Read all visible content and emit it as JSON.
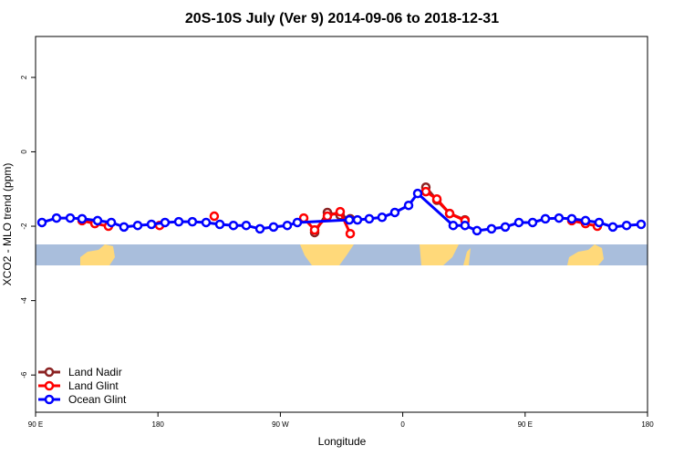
{
  "chart_data": {
    "type": "line",
    "title": "20S-10S July (Ver 9)   2014-09-06 to 2018-12-31",
    "x_label": "Longitude",
    "y_label": "XCO2 - MLO trend (ppm)",
    "xlim": [
      90,
      540
    ],
    "xticks": [
      {
        "value": 90,
        "label": "90 E"
      },
      180,
      {
        "value": 270,
        "label": "90 W"
      },
      {
        "value": 360,
        "label": "0"
      },
      {
        "value": 450,
        "label": "90 E"
      },
      {
        "value": 540,
        "label": "180"
      }
    ],
    "ylim": [
      -7,
      3.1
    ],
    "yticks": [
      2,
      0,
      -2,
      -4,
      -6
    ],
    "legend": "bottom-left",
    "series": [
      {
        "name": "Land Nadir",
        "color": "#8b2323",
        "x": [
          295.2,
          304.6,
          314.0,
          321.4,
          null,
          377.0,
          385.1,
          394.5,
          405.8
        ],
        "values": [
          -2.17,
          -1.63,
          -1.71,
          -1.8,
          null,
          -0.95,
          -1.3,
          -1.66,
          -1.83
        ]
      },
      {
        "name": "Land Glint",
        "color": "#ff0000",
        "x": [
          124.2,
          133.6,
          143.6,
          null,
          181.2,
          null,
          221.4,
          null,
          287.2,
          295.2,
          304.6,
          314.0,
          321.4,
          null,
          377.0,
          385.1,
          394.5,
          405.8,
          null,
          484.3,
          494.4,
          503.1
        ],
        "values": [
          -1.85,
          -1.93,
          -2.0,
          null,
          -1.98,
          null,
          -1.73,
          null,
          -1.78,
          -2.1,
          -1.73,
          -1.61,
          -2.2,
          null,
          -1.07,
          -1.27,
          -1.66,
          -1.85,
          null,
          -1.85,
          -1.93,
          -2.0
        ]
      },
      {
        "name": "Ocean Glint",
        "color": "#0000ff",
        "x": [
          94.7,
          105.4,
          115.5,
          124.2,
          135.6,
          145.7,
          155.0,
          165.1,
          175.2,
          185.2,
          195.3,
          205.3,
          215.4,
          225.5,
          235.5,
          244.9,
          255.0,
          265.0,
          275.1,
          282.5,
          320.7,
          326.7,
          335.4,
          344.8,
          354.2,
          364.3,
          371.0,
          397.1,
          405.8,
          414.6,
          425.3,
          435.4,
          445.4,
          455.5,
          464.9,
          474.9,
          484.3,
          494.4,
          504.4,
          514.5,
          524.6,
          535.3
        ],
        "values": [
          -1.9,
          -1.78,
          -1.78,
          -1.8,
          -1.85,
          -1.9,
          -2.02,
          -1.98,
          -1.95,
          -1.9,
          -1.88,
          -1.88,
          -1.9,
          -1.95,
          -1.98,
          -1.98,
          -2.07,
          -2.02,
          -1.98,
          -1.9,
          -1.83,
          -1.83,
          -1.8,
          -1.76,
          -1.63,
          -1.44,
          -1.12,
          -1.98,
          -1.98,
          -2.12,
          -2.07,
          -2.02,
          -1.9,
          -1.9,
          -1.8,
          -1.78,
          -1.8,
          -1.85,
          -1.9,
          -2.02,
          -1.98,
          -1.95
        ]
      }
    ]
  }
}
